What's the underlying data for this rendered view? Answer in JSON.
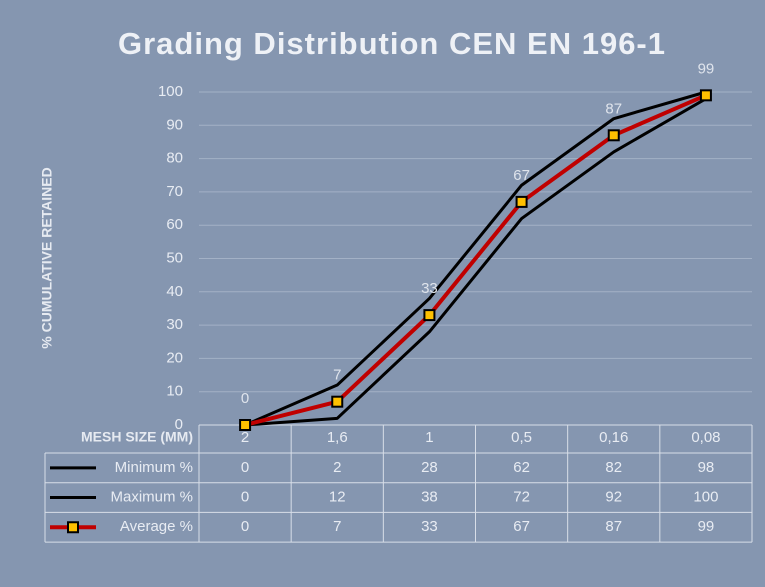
{
  "chart_data": {
    "type": "line",
    "title": "Grading Distribution CEN EN 196-1",
    "y_label": "% CUMULATIVE RETAINED",
    "x_label": "MESH SIZE (MM)",
    "categories": [
      "2",
      "1,6",
      "1",
      "0,5",
      "0,16",
      "0,08"
    ],
    "ylim": [
      0,
      100
    ],
    "yticks": [
      0,
      10,
      20,
      30,
      40,
      50,
      60,
      70,
      80,
      90,
      100
    ],
    "grid": true,
    "series": [
      {
        "name": "Minimum %",
        "color": "#000000",
        "values": [
          0,
          2,
          28,
          62,
          82,
          98
        ]
      },
      {
        "name": "Maximum %",
        "color": "#000000",
        "values": [
          0,
          12,
          38,
          72,
          92,
          100
        ]
      },
      {
        "name": "Average %",
        "color": "#c00000",
        "marker_color": "#ffc000",
        "data_labels": true,
        "values": [
          0,
          7,
          33,
          67,
          87,
          99
        ]
      }
    ]
  }
}
